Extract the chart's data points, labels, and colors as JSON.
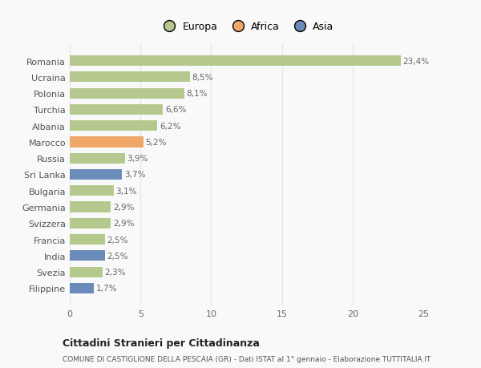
{
  "categories": [
    "Filippine",
    "Svezia",
    "India",
    "Francia",
    "Svizzera",
    "Germania",
    "Bulgaria",
    "Sri Lanka",
    "Russia",
    "Marocco",
    "Albania",
    "Turchia",
    "Polonia",
    "Ucraina",
    "Romania"
  ],
  "values": [
    1.7,
    2.3,
    2.5,
    2.5,
    2.9,
    2.9,
    3.1,
    3.7,
    3.9,
    5.2,
    6.2,
    6.6,
    8.1,
    8.5,
    23.4
  ],
  "labels": [
    "1,7%",
    "2,3%",
    "2,5%",
    "2,5%",
    "2,9%",
    "2,9%",
    "3,1%",
    "3,7%",
    "3,9%",
    "5,2%",
    "6,2%",
    "6,6%",
    "8,1%",
    "8,5%",
    "23,4%"
  ],
  "continent": [
    "Asia",
    "Europa",
    "Asia",
    "Europa",
    "Europa",
    "Europa",
    "Europa",
    "Asia",
    "Europa",
    "Africa",
    "Europa",
    "Europa",
    "Europa",
    "Europa",
    "Europa"
  ],
  "colors": {
    "Europa": "#b5c98e",
    "Africa": "#f0a868",
    "Asia": "#6b8cba"
  },
  "legend_labels": [
    "Europa",
    "Africa",
    "Asia"
  ],
  "legend_colors": [
    "#b5c98e",
    "#f0a868",
    "#6b8cba"
  ],
  "title": "Cittadini Stranieri per Cittadinanza",
  "subtitle": "COMUNE DI CASTIGLIONE DELLA PESCAIA (GR) - Dati ISTAT al 1° gennaio - Elaborazione TUTTITALIA.IT",
  "xlim": [
    0,
    25
  ],
  "xticks": [
    0,
    5,
    10,
    15,
    20,
    25
  ],
  "background_color": "#f9f9f9",
  "grid_color": "#e8e8e8",
  "bar_height": 0.65,
  "label_fontsize": 7.5,
  "tick_fontsize": 8,
  "title_fontsize": 9,
  "subtitle_fontsize": 6.5
}
